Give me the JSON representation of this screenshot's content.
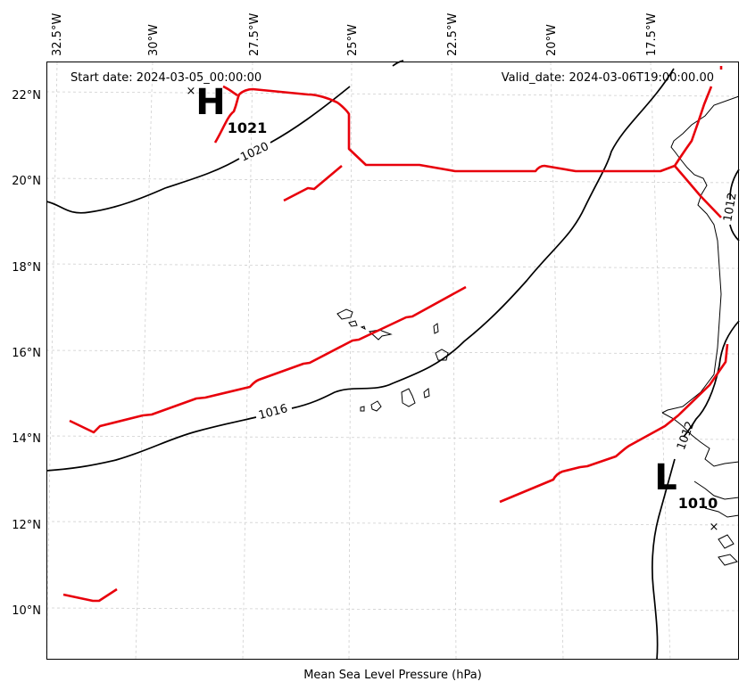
{
  "map": {
    "start_date": "Start date: 2024-03-05_00:00:00",
    "valid_date": "Valid_date: 2024-03-06T19:00:00.00",
    "xlabel": "Mean Sea Level Pressure (hPa)",
    "lon_ticks": [
      "32.5°W",
      "30°W",
      "27.5°W",
      "25°W",
      "22.5°W",
      "20°W",
      "17.5°W"
    ],
    "lat_ticks": [
      "22°N",
      "20°N",
      "18°N",
      "16°N",
      "14°N",
      "12°N",
      "10°N"
    ],
    "isobar_labels": [
      "1020",
      "1016",
      "1012",
      "1012"
    ],
    "centers": [
      {
        "letter": "H",
        "value": "1021",
        "marker": "×"
      },
      {
        "letter": "L",
        "value": "1010",
        "marker": "×"
      }
    ],
    "colors": {
      "isobar": "#000000",
      "front": "#e8000b",
      "grid": "#cfcfcf"
    },
    "extent": {
      "lon": [
        -33.0,
        -15.0
      ],
      "lat": [
        8.8,
        22.8
      ]
    }
  }
}
